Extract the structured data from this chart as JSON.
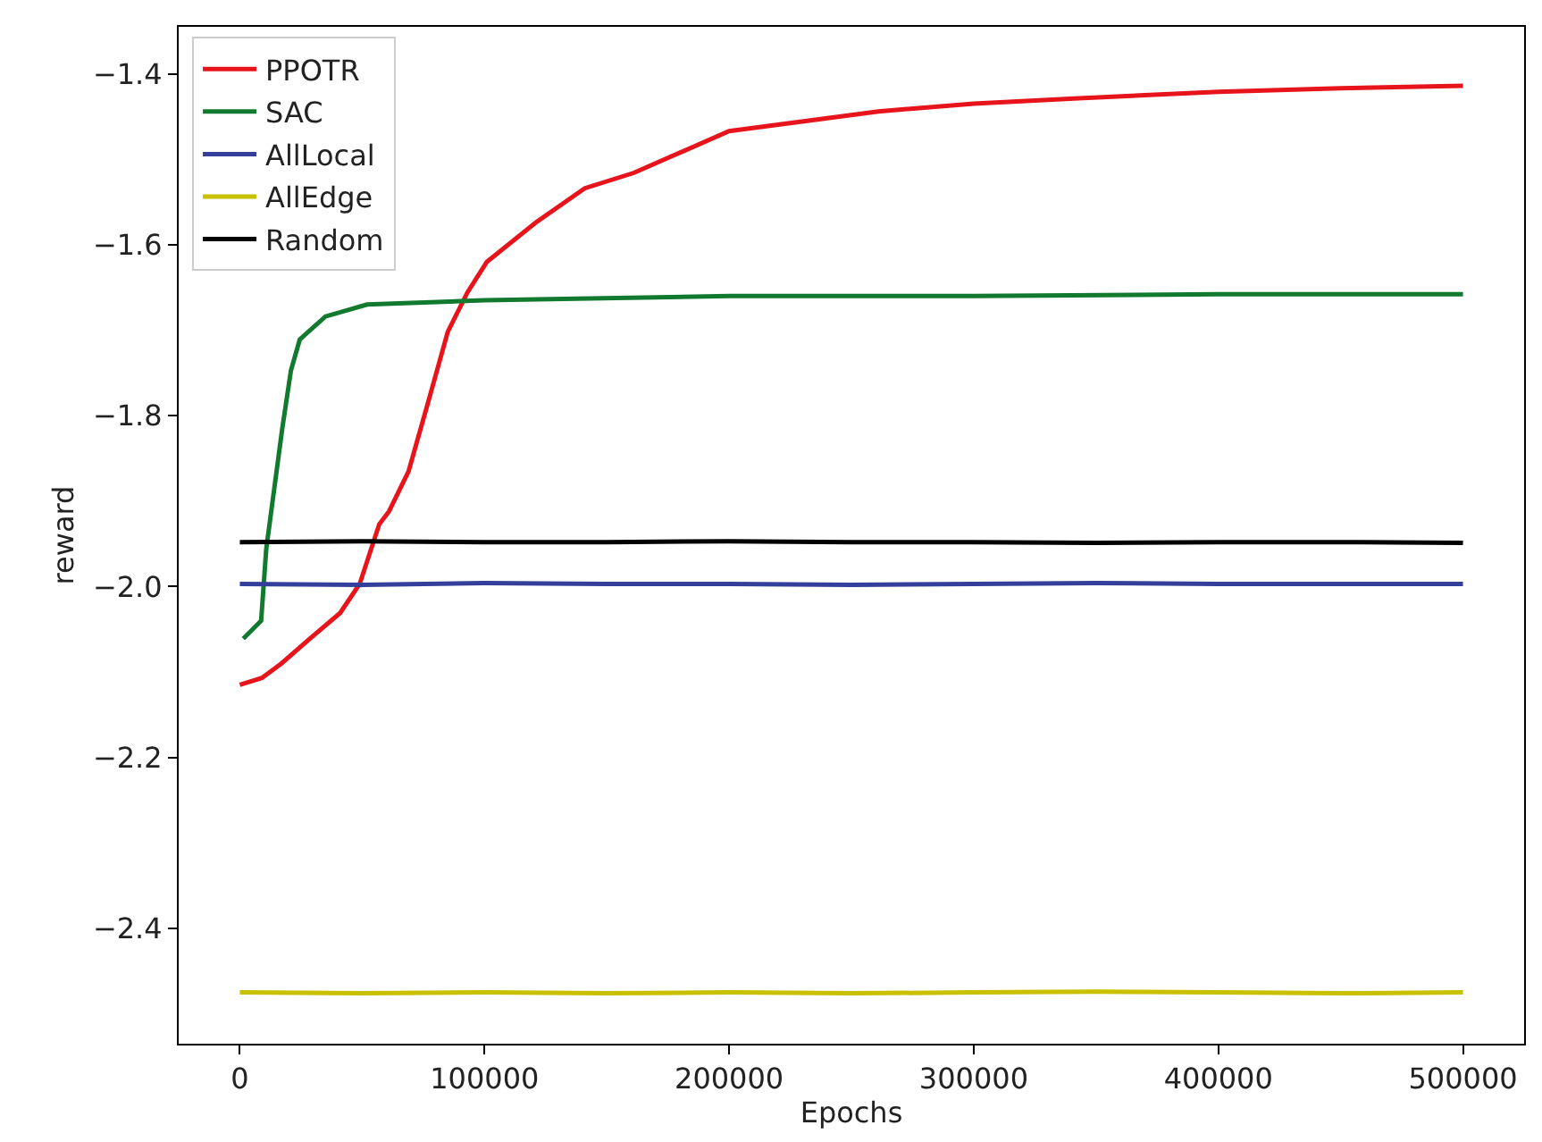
{
  "chart_data": {
    "type": "line",
    "xlabel": "Epochs",
    "ylabel": "reward",
    "xlim": [
      -25000,
      525000
    ],
    "xticks": [
      0,
      100000,
      200000,
      300000,
      400000,
      500000
    ],
    "ylim": [
      -2.535,
      -1.345
    ],
    "yticks": [
      {
        "value": -2.4,
        "label": "−2.4"
      },
      {
        "value": -2.2,
        "label": "−2.2"
      },
      {
        "value": -2.0,
        "label": "−2.0"
      },
      {
        "value": -1.8,
        "label": "−1.8"
      },
      {
        "value": -1.6,
        "label": "−1.6"
      },
      {
        "value": -1.4,
        "label": "−1.4"
      }
    ],
    "legend": "top left",
    "marker": "none",
    "line_style": "solid",
    "series": [
      {
        "name": "PPOTR",
        "color": "#e8141b",
        "x": [
          0,
          9000,
          17000,
          29000,
          41000,
          49000,
          57000,
          61000,
          69000,
          77000,
          85000,
          93000,
          101000,
          121000,
          141000,
          161000,
          200000,
          261000,
          300000,
          341000,
          400000,
          450000,
          500000
        ],
        "values": [
          -2.115,
          -2.107,
          -2.09,
          -2.06,
          -2.031,
          -1.997,
          -1.927,
          -1.912,
          -1.865,
          -1.784,
          -1.702,
          -1.656,
          -1.62,
          -1.574,
          -1.534,
          -1.516,
          -1.467,
          -1.444,
          -1.435,
          -1.429,
          -1.421,
          -1.417,
          -1.414
        ]
      },
      {
        "name": "SAC",
        "color": "#117a2e",
        "x": [
          1400,
          8700,
          10800,
          17300,
          20900,
          24500,
          35000,
          52000,
          100000,
          200000,
          300000,
          400000,
          500000
        ],
        "values": [
          -2.061,
          -2.04,
          -1.956,
          -1.816,
          -1.747,
          -1.711,
          -1.684,
          -1.67,
          -1.665,
          -1.66,
          -1.66,
          -1.658,
          -1.658
        ]
      },
      {
        "name": "AllLocal",
        "color": "#333f9a",
        "x": [
          0,
          50000,
          100000,
          150000,
          200000,
          250000,
          300000,
          350000,
          400000,
          450000,
          500000
        ],
        "values": [
          -1.997,
          -1.998,
          -1.996,
          -1.997,
          -1.997,
          -1.998,
          -1.997,
          -1.996,
          -1.997,
          -1.997,
          -1.997
        ]
      },
      {
        "name": "AllEdge",
        "color": "#c8c000",
        "x": [
          0,
          50000,
          100000,
          150000,
          200000,
          250000,
          300000,
          350000,
          400000,
          450000,
          500000
        ],
        "values": [
          -2.475,
          -2.476,
          -2.475,
          -2.476,
          -2.475,
          -2.476,
          -2.475,
          -2.474,
          -2.475,
          -2.476,
          -2.475
        ]
      },
      {
        "name": "Random",
        "color": "#000000",
        "x": [
          0,
          50000,
          100000,
          150000,
          200000,
          250000,
          300000,
          350000,
          400000,
          450000,
          500000
        ],
        "values": [
          -1.948,
          -1.947,
          -1.948,
          -1.948,
          -1.947,
          -1.948,
          -1.948,
          -1.949,
          -1.948,
          -1.948,
          -1.949
        ]
      }
    ]
  }
}
